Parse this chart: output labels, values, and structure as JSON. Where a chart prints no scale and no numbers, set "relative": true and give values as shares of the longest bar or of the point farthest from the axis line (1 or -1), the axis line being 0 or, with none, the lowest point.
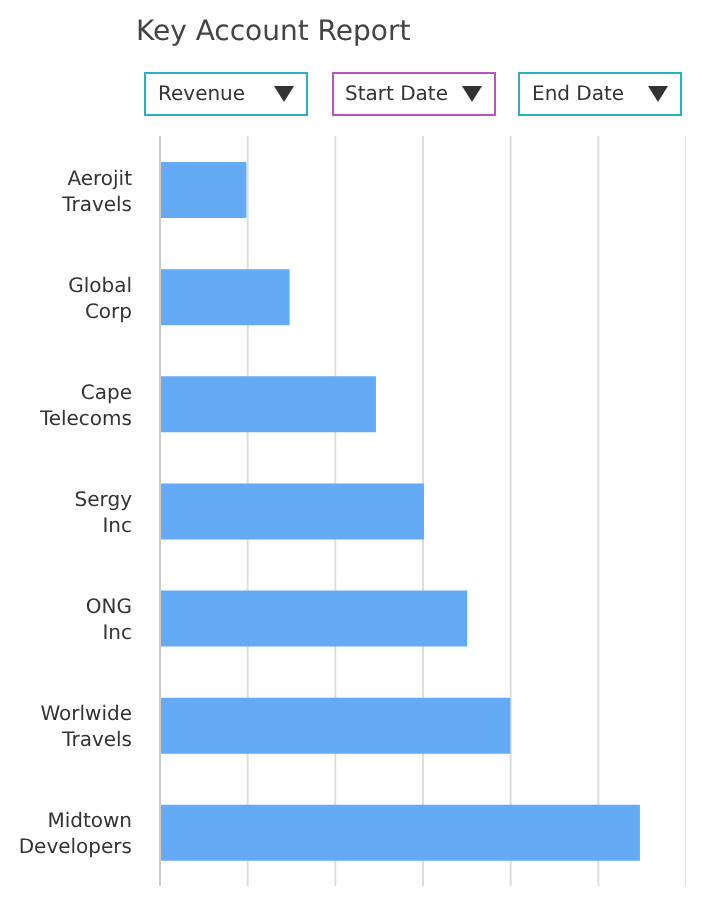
{
  "chart_data": {
    "type": "bar",
    "orientation": "horizontal",
    "relative": true,
    "title": "Key Account Report",
    "annotations": [
      "Revenue",
      "Start Date",
      "End Date"
    ],
    "categories": [
      "Aerojit Travels",
      "Global Corp",
      "Cape Telecoms",
      "Sergy Inc",
      "ONG Inc",
      "Worlwide Travels",
      "Midtown Developers"
    ],
    "values": [
      0.18,
      0.27,
      0.45,
      0.55,
      0.64,
      0.73,
      1
    ],
    "color": "#64aaf5",
    "grid": "x"
  }
}
